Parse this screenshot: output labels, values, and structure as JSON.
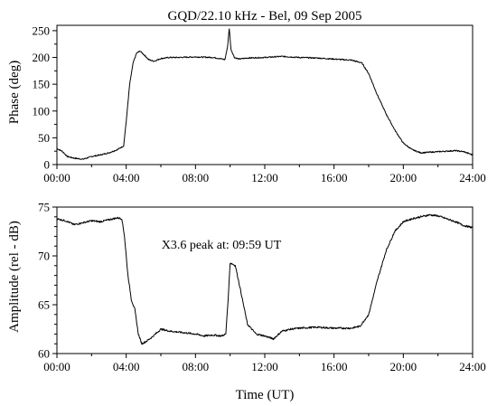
{
  "chart_data": [
    {
      "type": "line",
      "title": "GQD/22.10 kHz - Bel, 09 Sep 2005",
      "xlabel": "",
      "ylabel": "Phase (deg)",
      "xlim": [
        0,
        24
      ],
      "ylim": [
        0,
        260
      ],
      "x_ticks": [
        "00:00",
        "04:00",
        "08:00",
        "12:00",
        "16:00",
        "20:00",
        "24:00"
      ],
      "y_ticks": [
        "0",
        "50",
        "100",
        "150",
        "200",
        "250"
      ],
      "grid": false,
      "series": [
        {
          "x": [
            0.0,
            0.3,
            0.6,
            1.0,
            1.5,
            2.0,
            2.5,
            3.0,
            3.5,
            3.85,
            4.0,
            4.2,
            4.4,
            4.6,
            4.8,
            5.0,
            5.3,
            5.6,
            6.0,
            6.5,
            7.0,
            8.0,
            9.0,
            9.4,
            9.7,
            9.85,
            9.95,
            10.05,
            10.25,
            10.5,
            11.0,
            12.0,
            13.0,
            14.0,
            15.0,
            16.0,
            17.0,
            17.6,
            18.0,
            18.5,
            19.0,
            19.5,
            20.0,
            20.5,
            21.0,
            22.0,
            23.0,
            23.5,
            24.0
          ],
          "y": [
            30,
            25,
            15,
            12,
            10,
            15,
            18,
            22,
            28,
            35,
            80,
            150,
            190,
            208,
            212,
            206,
            196,
            193,
            198,
            200,
            200,
            201,
            200,
            198,
            196,
            220,
            254,
            215,
            200,
            197,
            199,
            200,
            202,
            200,
            199,
            197,
            195,
            190,
            170,
            130,
            95,
            65,
            40,
            28,
            22,
            24,
            26,
            24,
            18
          ]
        }
      ]
    },
    {
      "type": "line",
      "title": "",
      "xlabel": "Time (UT)",
      "ylabel": "Amplitude (rel - dB)",
      "xlim": [
        0,
        24
      ],
      "ylim": [
        60,
        75
      ],
      "x_ticks": [
        "00:00",
        "04:00",
        "08:00",
        "12:00",
        "16:00",
        "20:00",
        "24:00"
      ],
      "y_ticks": [
        "60",
        "65",
        "70",
        "75"
      ],
      "grid": false,
      "annotation": "X3.6  peak at: 09:59 UT",
      "series": [
        {
          "x": [
            0.0,
            0.5,
            1.0,
            1.5,
            2.0,
            2.5,
            3.0,
            3.5,
            3.75,
            3.9,
            4.1,
            4.3,
            4.5,
            4.7,
            4.9,
            5.2,
            5.5,
            6.0,
            6.5,
            7.0,
            7.5,
            8.0,
            8.5,
            9.0,
            9.5,
            9.75,
            9.9,
            10.0,
            10.3,
            10.6,
            11.0,
            11.5,
            12.0,
            12.5,
            13.0,
            13.5,
            14.0,
            15.0,
            16.0,
            17.0,
            17.5,
            18.0,
            18.5,
            19.0,
            19.5,
            20.0,
            20.5,
            21.0,
            21.5,
            22.0,
            22.5,
            23.0,
            23.5,
            24.0
          ],
          "y": [
            73.8,
            73.6,
            73.2,
            73.4,
            73.6,
            73.5,
            73.7,
            73.9,
            73.8,
            72.0,
            68.0,
            65.5,
            64.5,
            62.0,
            61.0,
            61.3,
            61.7,
            62.5,
            62.3,
            62.2,
            62.1,
            62.0,
            61.8,
            61.9,
            61.8,
            62.0,
            66.0,
            69.3,
            69.0,
            66.5,
            63.0,
            62.0,
            61.8,
            61.5,
            62.3,
            62.5,
            62.6,
            62.7,
            62.6,
            62.6,
            62.8,
            64.0,
            67.5,
            70.5,
            72.5,
            73.5,
            73.8,
            74.0,
            74.2,
            74.1,
            73.8,
            73.5,
            73.1,
            72.9
          ]
        }
      ]
    }
  ]
}
